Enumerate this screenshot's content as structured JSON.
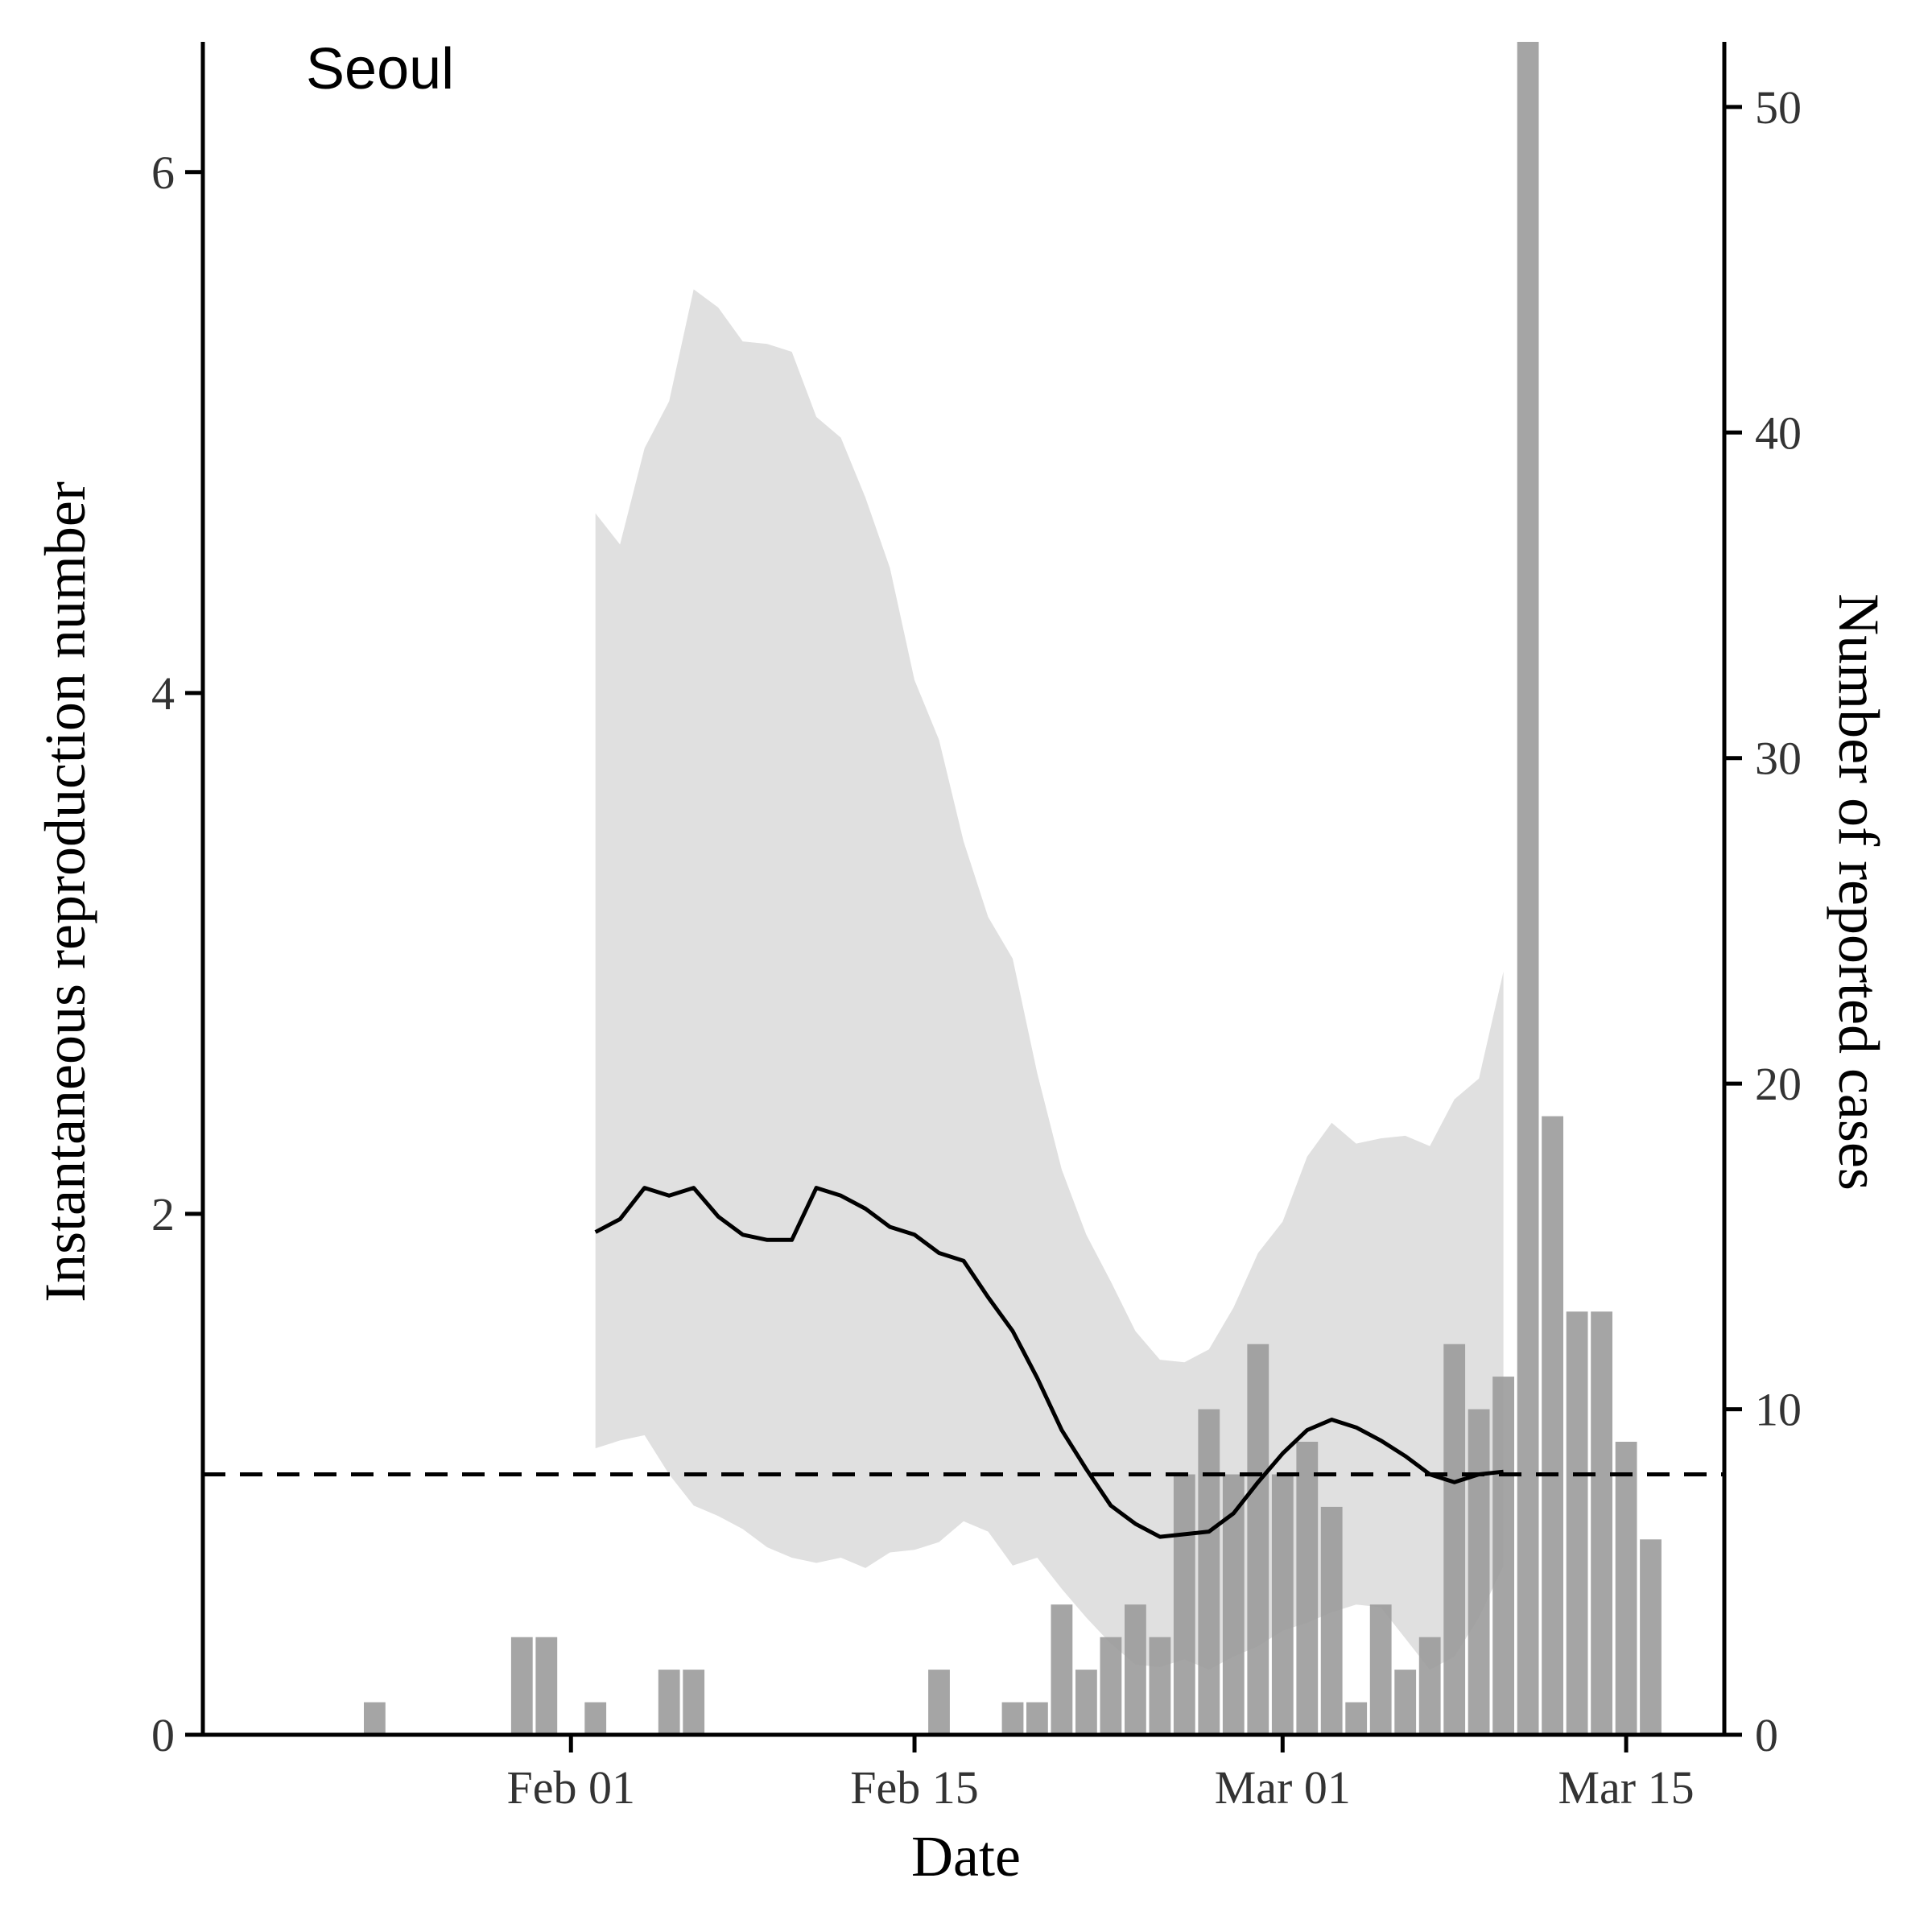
{
  "chart_data": {
    "type": "line",
    "title": "Seoul",
    "xlabel": "Date",
    "ylabel": "Instantaneous reproduction number",
    "y2label": "Number of reported cases",
    "x_ticks": [
      {
        "date": "2020-02-01",
        "label": "Feb 01"
      },
      {
        "date": "2020-02-15",
        "label": "Feb 15"
      },
      {
        "date": "2020-03-01",
        "label": "Mar 01"
      },
      {
        "date": "2020-03-15",
        "label": "Mar 15"
      }
    ],
    "xlim": [
      "2020-01-17",
      "2020-03-19"
    ],
    "ylim": [
      0,
      6.5
    ],
    "y_ticks": [
      0,
      2,
      4,
      6
    ],
    "y2lim": [
      0,
      52
    ],
    "y2_ticks": [
      0,
      10,
      20,
      30,
      40,
      50
    ],
    "reference_line": {
      "value": 1,
      "style": "dashed"
    },
    "colors": {
      "line": "#000000",
      "ribbon": "#e0e0e0",
      "bars": "#999999",
      "axis": "#000000"
    },
    "series": [
      {
        "kind": "line",
        "dates": [
          "2020-02-02",
          "2020-02-03",
          "2020-02-04",
          "2020-02-05",
          "2020-02-06",
          "2020-02-07",
          "2020-02-08",
          "2020-02-09",
          "2020-02-10",
          "2020-02-11",
          "2020-02-12",
          "2020-02-13",
          "2020-02-14",
          "2020-02-15",
          "2020-02-16",
          "2020-02-17",
          "2020-02-18",
          "2020-02-19",
          "2020-02-20",
          "2020-02-21",
          "2020-02-22",
          "2020-02-23",
          "2020-02-24",
          "2020-02-25",
          "2020-02-26",
          "2020-02-27",
          "2020-02-28",
          "2020-02-29",
          "2020-03-01",
          "2020-03-02",
          "2020-03-03",
          "2020-03-04",
          "2020-03-05",
          "2020-03-06",
          "2020-03-07",
          "2020-03-08",
          "2020-03-09",
          "2020-03-10"
        ],
        "values": [
          1.93,
          1.98,
          2.1,
          2.07,
          2.1,
          1.99,
          1.92,
          1.9,
          1.9,
          2.1,
          2.07,
          2.02,
          1.95,
          1.92,
          1.85,
          1.82,
          1.68,
          1.55,
          1.37,
          1.17,
          1.02,
          0.88,
          0.81,
          0.76,
          0.77,
          0.78,
          0.85,
          0.97,
          1.08,
          1.17,
          1.21,
          1.18,
          1.13,
          1.07,
          1.0,
          0.97,
          1.0,
          1.01
        ]
      },
      {
        "kind": "ribbon",
        "dates": [
          "2020-02-02",
          "2020-02-03",
          "2020-02-04",
          "2020-02-05",
          "2020-02-06",
          "2020-02-07",
          "2020-02-08",
          "2020-02-09",
          "2020-02-10",
          "2020-02-11",
          "2020-02-12",
          "2020-02-13",
          "2020-02-14",
          "2020-02-15",
          "2020-02-16",
          "2020-02-17",
          "2020-02-18",
          "2020-02-19",
          "2020-02-20",
          "2020-02-21",
          "2020-02-22",
          "2020-02-23",
          "2020-02-24",
          "2020-02-25",
          "2020-02-26",
          "2020-02-27",
          "2020-02-28",
          "2020-02-29",
          "2020-03-01",
          "2020-03-02",
          "2020-03-03",
          "2020-03-04",
          "2020-03-05",
          "2020-03-06",
          "2020-03-07",
          "2020-03-08",
          "2020-03-09",
          "2020-03-10"
        ],
        "lower": [
          1.1,
          1.13,
          1.15,
          1.0,
          0.88,
          0.84,
          0.79,
          0.72,
          0.68,
          0.66,
          0.68,
          0.64,
          0.7,
          0.71,
          0.74,
          0.82,
          0.78,
          0.65,
          0.68,
          0.56,
          0.45,
          0.35,
          0.27,
          0.26,
          0.29,
          0.25,
          0.3,
          0.34,
          0.4,
          0.43,
          0.47,
          0.5,
          0.49,
          0.37,
          0.25,
          0.3,
          0.45,
          0.65
        ],
        "upper": [
          4.69,
          4.57,
          4.94,
          5.12,
          5.55,
          5.48,
          5.35,
          5.34,
          5.31,
          5.06,
          4.98,
          4.75,
          4.48,
          4.05,
          3.82,
          3.43,
          3.14,
          2.98,
          2.54,
          2.17,
          1.92,
          1.74,
          1.55,
          1.44,
          1.43,
          1.48,
          1.64,
          1.85,
          1.97,
          2.22,
          2.35,
          2.27,
          2.29,
          2.3,
          2.26,
          2.44,
          2.52,
          2.93
        ]
      },
      {
        "kind": "bar",
        "axis": "secondary",
        "dates": [
          "2020-01-24",
          "2020-01-30",
          "2020-01-31",
          "2020-02-02",
          "2020-02-05",
          "2020-02-06",
          "2020-02-16",
          "2020-02-19",
          "2020-02-20",
          "2020-02-21",
          "2020-02-22",
          "2020-02-23",
          "2020-02-24",
          "2020-02-25",
          "2020-02-26",
          "2020-02-27",
          "2020-02-28",
          "2020-02-29",
          "2020-03-01",
          "2020-03-02",
          "2020-03-03",
          "2020-03-04",
          "2020-03-05",
          "2020-03-06",
          "2020-03-07",
          "2020-03-08",
          "2020-03-09",
          "2020-03-10",
          "2020-03-11",
          "2020-03-12",
          "2020-03-13",
          "2020-03-14",
          "2020-03-15",
          "2020-03-16"
        ],
        "values": [
          1,
          3,
          3,
          1,
          2,
          2,
          2,
          1,
          1,
          4,
          2,
          3,
          4,
          3,
          8,
          10,
          8,
          12,
          8,
          9,
          7,
          1,
          4,
          2,
          3,
          12,
          10,
          11,
          52,
          19,
          13,
          13,
          9,
          6
        ]
      }
    ]
  }
}
